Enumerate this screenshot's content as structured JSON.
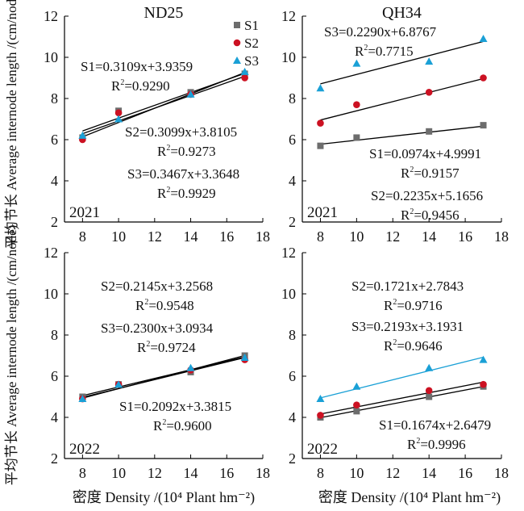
{
  "figure": {
    "y_axis_label": "平均节长 Average internode length /(cm/node)",
    "x_axis_label": "密度 Density /(10⁴ Plant hm⁻²)",
    "x_ticks": [
      "8",
      "10",
      "12",
      "14",
      "16",
      "18"
    ],
    "y_ticks": [
      "2",
      "4",
      "6",
      "8",
      "10",
      "12"
    ],
    "legend": [
      {
        "name": "S1",
        "marker": "square",
        "color": "#6d6d6d"
      },
      {
        "name": "S2",
        "marker": "circle",
        "color": "#cc1122"
      },
      {
        "name": "S3",
        "marker": "triangle",
        "color": "#1aa0d6"
      }
    ],
    "colors": {
      "S1": "#6d6d6d",
      "S2": "#cc1122",
      "S3": "#1aa0d6",
      "fit_line": "#000000",
      "axis": "#000000"
    }
  },
  "chart_data": [
    {
      "type": "scatter",
      "title": "ND25",
      "year": "2021",
      "x": [
        8,
        10,
        14,
        17
      ],
      "xlim": [
        7,
        18
      ],
      "ylim": [
        2,
        12
      ],
      "series": [
        {
          "name": "S1",
          "values": [
            6.1,
            7.4,
            8.3,
            9.2
          ],
          "fit_slope": 0.3109,
          "fit_intercept": 3.9359,
          "equation": "S1=0.3109x+3.9359",
          "r2": "0.9290",
          "fit_color": "#000000"
        },
        {
          "name": "S2",
          "values": [
            6.0,
            7.3,
            8.2,
            9.0
          ],
          "fit_slope": 0.3099,
          "fit_intercept": 3.8105,
          "equation": "S2=0.3099x+3.8105",
          "r2": "0.9273",
          "fit_color": "#000000"
        },
        {
          "name": "S3",
          "values": [
            6.2,
            7.0,
            8.2,
            9.3
          ],
          "fit_slope": 0.3467,
          "fit_intercept": 3.3648,
          "equation": "S3=0.3467x+3.3648",
          "r2": "0.9929",
          "fit_color": "#000000"
        }
      ]
    },
    {
      "type": "scatter",
      "title": "QH34",
      "year": "2021",
      "x": [
        8,
        10,
        14,
        17
      ],
      "xlim": [
        7,
        18
      ],
      "ylim": [
        2,
        12
      ],
      "series": [
        {
          "name": "S1",
          "values": [
            5.7,
            6.1,
            6.4,
            6.7
          ],
          "fit_slope": 0.0974,
          "fit_intercept": 4.9991,
          "equation": "S1=0.0974x+4.9991",
          "r2": "0.9157",
          "fit_color": "#000000"
        },
        {
          "name": "S2",
          "values": [
            6.8,
            7.7,
            8.3,
            9.0
          ],
          "fit_slope": 0.2235,
          "fit_intercept": 5.1656,
          "equation": "S2=0.2235x+5.1656",
          "r2": "0.9456",
          "fit_color": "#000000"
        },
        {
          "name": "S3",
          "values": [
            8.5,
            9.7,
            9.8,
            10.9
          ],
          "fit_slope": 0.229,
          "fit_intercept": 6.8767,
          "equation": "S3=0.2290x+6.8767",
          "r2": "0.7715",
          "fit_color": "#000000"
        }
      ]
    },
    {
      "type": "scatter",
      "title": "",
      "year": "2022",
      "x": [
        8,
        10,
        14,
        17
      ],
      "xlim": [
        7,
        18
      ],
      "ylim": [
        2,
        12
      ],
      "series": [
        {
          "name": "S1",
          "values": [
            5.0,
            5.6,
            6.2,
            7.0
          ],
          "fit_slope": 0.2092,
          "fit_intercept": 3.3815,
          "equation": "S1=0.2092x+3.3815",
          "r2": "0.9600",
          "fit_color": "#000000"
        },
        {
          "name": "S2",
          "values": [
            4.9,
            5.6,
            6.3,
            6.8
          ],
          "fit_slope": 0.2145,
          "fit_intercept": 3.2568,
          "equation": "S2=0.2145x+3.2568",
          "r2": "0.9548",
          "fit_color": "#000000"
        },
        {
          "name": "S3",
          "values": [
            4.9,
            5.6,
            6.4,
            6.9
          ],
          "fit_slope": 0.23,
          "fit_intercept": 3.0934,
          "equation": "S3=0.2300x+3.0934",
          "r2": "0.9724",
          "fit_color": "#000000"
        }
      ]
    },
    {
      "type": "scatter",
      "title": "",
      "year": "2022",
      "x": [
        8,
        10,
        14,
        17
      ],
      "xlim": [
        7,
        18
      ],
      "ylim": [
        2,
        12
      ],
      "series": [
        {
          "name": "S1",
          "values": [
            4.0,
            4.3,
            5.0,
            5.5
          ],
          "fit_slope": 0.1674,
          "fit_intercept": 2.6479,
          "equation": "S1=0.1674x+2.6479",
          "r2": "0.9996",
          "fit_color": "#000000"
        },
        {
          "name": "S2",
          "values": [
            4.1,
            4.6,
            5.3,
            5.6
          ],
          "fit_slope": 0.1721,
          "fit_intercept": 2.7843,
          "equation": "S2=0.1721x+2.7843",
          "r2": "0.9716",
          "fit_color": "#000000"
        },
        {
          "name": "S3",
          "values": [
            4.9,
            5.5,
            6.4,
            6.8
          ],
          "fit_slope": 0.2193,
          "fit_intercept": 3.1931,
          "equation": "S3=0.2193x+3.1931",
          "r2": "0.9646",
          "fit_color": "#1aa0d6"
        }
      ]
    }
  ]
}
